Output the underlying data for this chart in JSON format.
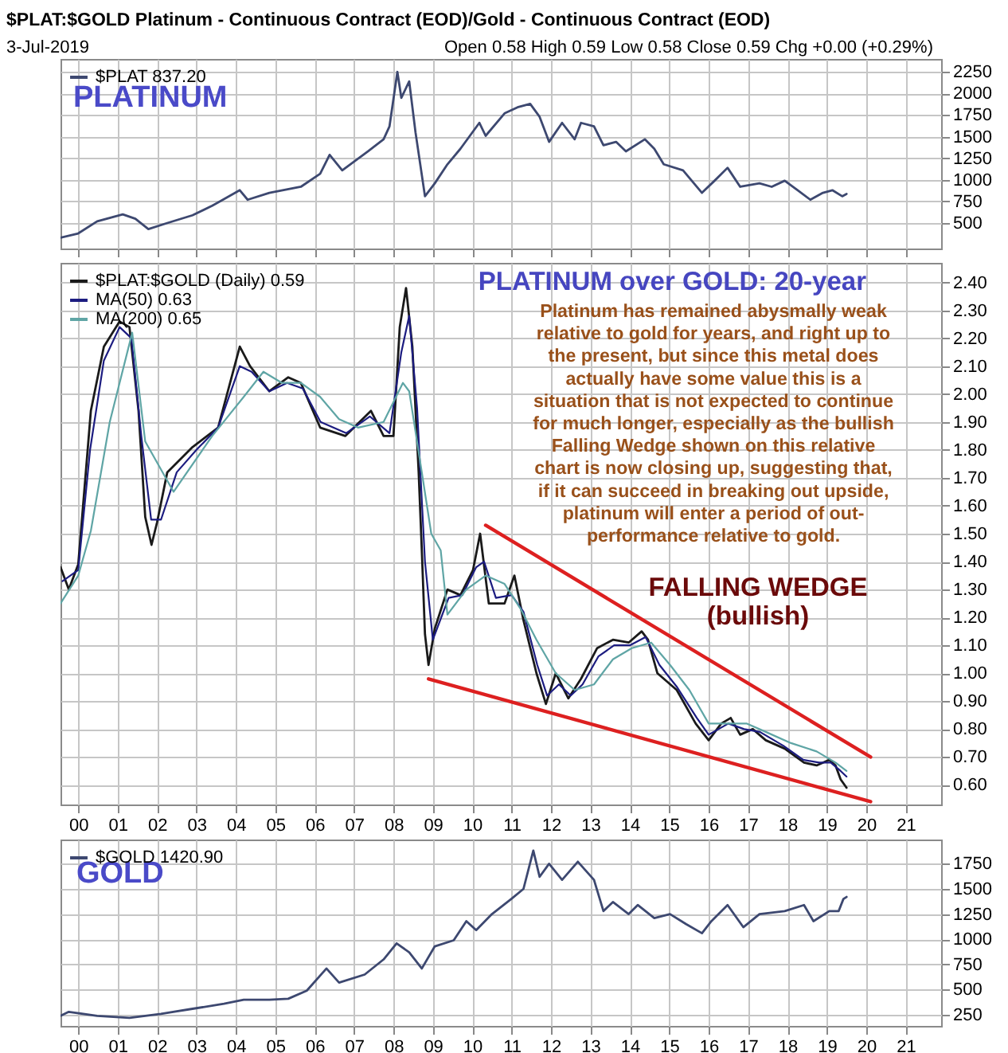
{
  "chart_data": [
    {
      "type": "line",
      "title": "$PLAT:$GOLD Platinum - Continuous Contract (EOD)/Gold - Continuous Contract (EOD)",
      "annotations": [
        "3-Jul-2019",
        "Open 0.58 High 0.59 Low 0.58 Close 0.59 Chg +0.00 (+0.29%)",
        "PLATINUM"
      ],
      "series": [
        {
          "name": "$PLAT 837.20",
          "color": "#3d4870",
          "x": [
            1999.55,
            2000.0,
            2000.48,
            2001.13,
            2001.45,
            2001.78,
            2002.26,
            2002.9,
            2003.4,
            2004.1,
            2004.3,
            2004.85,
            2005.65,
            2006.14,
            2006.38,
            2006.7,
            2007.35,
            2007.75,
            2007.9,
            2008.1,
            2008.2,
            2008.4,
            2008.56,
            2008.8,
            2009.05,
            2009.37,
            2009.7,
            2010.18,
            2010.34,
            2010.82,
            2011.15,
            2011.47,
            2011.71,
            2011.95,
            2012.28,
            2012.6,
            2012.76,
            2013.09,
            2013.33,
            2013.65,
            2013.9,
            2014.38,
            2014.62,
            2014.86,
            2015.35,
            2015.83,
            2016.15,
            2016.48,
            2016.8,
            2017.29,
            2017.6,
            2017.93,
            2018.26,
            2018.58,
            2018.9,
            2019.14,
            2019.39,
            2019.5
          ],
          "values": [
            330,
            380,
            520,
            600,
            550,
            430,
            500,
            590,
            700,
            880,
            770,
            850,
            920,
            1070,
            1290,
            1110,
            1330,
            1470,
            1620,
            2250,
            1950,
            2140,
            1550,
            810,
            960,
            1180,
            1360,
            1660,
            1510,
            1770,
            1840,
            1880,
            1730,
            1440,
            1660,
            1470,
            1660,
            1620,
            1400,
            1440,
            1330,
            1470,
            1360,
            1180,
            1110,
            850,
            990,
            1140,
            920,
            960,
            920,
            990,
            880,
            770,
            850,
            880,
            810,
            837
          ]
        }
      ],
      "xlim": [
        1999.55,
        2021.9
      ],
      "ylim": [
        205,
        2400
      ],
      "xticks": [
        {
          "value": 2000,
          "label": null
        },
        {
          "value": 2001,
          "label": null
        },
        {
          "value": 2002,
          "label": null
        },
        {
          "value": 2003,
          "label": null
        },
        {
          "value": 2004,
          "label": null
        },
        {
          "value": 2005,
          "label": null
        },
        {
          "value": 2006,
          "label": null
        },
        {
          "value": 2007,
          "label": null
        },
        {
          "value": 2008,
          "label": null
        },
        {
          "value": 2009,
          "label": null
        },
        {
          "value": 2010,
          "label": null
        },
        {
          "value": 2011,
          "label": null
        },
        {
          "value": 2012,
          "label": null
        },
        {
          "value": 2013,
          "label": null
        },
        {
          "value": 2014,
          "label": null
        },
        {
          "value": 2015,
          "label": null
        },
        {
          "value": 2016,
          "label": null
        },
        {
          "value": 2017,
          "label": null
        },
        {
          "value": 2018,
          "label": null
        },
        {
          "value": 2019,
          "label": null
        },
        {
          "value": 2020,
          "label": null
        },
        {
          "value": 2021,
          "label": null
        }
      ],
      "yticks": [
        500,
        750,
        1000,
        1250,
        1500,
        1750,
        2000,
        2250
      ],
      "grid": true,
      "legend": "top left",
      "tick_labels": "y"
    },
    {
      "type": "line",
      "title": "PLATINUM over GOLD: 20-year",
      "annotations": [
        "Platinum has remained abysmally weak\nrelative to gold for years, and right up to\nthe present, but since this metal does\nactually have some value this is a\nsituation that is not expected to continue\nfor much longer, especially as the bullish\nFalling Wedge shown on this relative\nchart is now closing up, suggesting that,\nif it can succeed in breaking out upside,\nplatinum will enter a period of out-\nperformance relative to gold.",
        "FALLING WEDGE",
        "(bullish)"
      ],
      "series": [
        {
          "name": "$PLAT:$GOLD (Daily) 0.59",
          "color": "#1a1a1a",
          "x": [
            1999.55,
            1999.76,
            2000.0,
            2000.32,
            2000.65,
            2001.05,
            2001.3,
            2001.53,
            2001.7,
            2001.86,
            2002.0,
            2002.26,
            2002.9,
            2003.55,
            2004.1,
            2004.36,
            2004.85,
            2005.33,
            2005.65,
            2006.14,
            2006.78,
            2007.43,
            2007.75,
            2008.0,
            2008.16,
            2008.32,
            2008.48,
            2008.64,
            2008.72,
            2008.8,
            2008.89,
            2009.05,
            2009.37,
            2009.7,
            2010.02,
            2010.2,
            2010.42,
            2010.82,
            2011.07,
            2011.3,
            2011.63,
            2011.87,
            2012.12,
            2012.44,
            2012.76,
            2013.17,
            2013.57,
            2013.97,
            2014.3,
            2014.46,
            2014.7,
            2015.19,
            2015.67,
            2016.0,
            2016.32,
            2016.56,
            2016.8,
            2017.12,
            2017.45,
            2017.93,
            2018.42,
            2018.74,
            2019.06,
            2019.22,
            2019.35,
            2019.5
          ],
          "values": [
            1.38,
            1.3,
            1.39,
            1.94,
            2.17,
            2.26,
            2.24,
            1.94,
            1.56,
            1.46,
            1.54,
            1.72,
            1.81,
            1.88,
            2.17,
            2.1,
            2.01,
            2.06,
            2.04,
            1.88,
            1.85,
            1.94,
            1.85,
            1.85,
            2.24,
            2.38,
            2.17,
            1.72,
            1.44,
            1.14,
            1.03,
            1.16,
            1.3,
            1.28,
            1.37,
            1.5,
            1.25,
            1.25,
            1.35,
            1.19,
            1.0,
            0.89,
            1.0,
            0.91,
            0.98,
            1.09,
            1.12,
            1.11,
            1.15,
            1.12,
            1.0,
            0.94,
            0.82,
            0.76,
            0.82,
            0.84,
            0.78,
            0.8,
            0.76,
            0.73,
            0.68,
            0.67,
            0.69,
            0.67,
            0.62,
            0.59
          ]
        },
        {
          "name": "MA(50) 0.63",
          "color": "#1c1c80",
          "x": [
            1999.6,
            2000.0,
            2000.3,
            2000.65,
            2001.05,
            2001.35,
            2001.6,
            2001.85,
            2002.1,
            2002.5,
            2003.0,
            2003.55,
            2004.1,
            2004.4,
            2004.85,
            2005.3,
            2005.7,
            2006.15,
            2006.8,
            2007.4,
            2007.9,
            2008.2,
            2008.4,
            2008.6,
            2008.8,
            2009.0,
            2009.4,
            2009.75,
            2010.1,
            2010.3,
            2010.6,
            2011.0,
            2011.3,
            2011.65,
            2011.9,
            2012.2,
            2012.5,
            2012.8,
            2013.2,
            2013.6,
            2014.0,
            2014.4,
            2014.75,
            2015.2,
            2015.7,
            2016.0,
            2016.5,
            2016.9,
            2017.3,
            2017.9,
            2018.4,
            2018.8,
            2019.1,
            2019.35,
            2019.5
          ],
          "values": [
            1.33,
            1.37,
            1.8,
            2.12,
            2.24,
            2.2,
            1.85,
            1.55,
            1.55,
            1.72,
            1.8,
            1.88,
            2.1,
            2.08,
            2.01,
            2.04,
            2.02,
            1.9,
            1.86,
            1.92,
            1.86,
            2.15,
            2.28,
            1.95,
            1.4,
            1.12,
            1.27,
            1.28,
            1.38,
            1.4,
            1.27,
            1.28,
            1.22,
            1.03,
            0.92,
            0.96,
            0.92,
            0.96,
            1.06,
            1.1,
            1.1,
            1.13,
            1.03,
            0.95,
            0.84,
            0.78,
            0.82,
            0.8,
            0.79,
            0.74,
            0.69,
            0.68,
            0.68,
            0.65,
            0.63
          ]
        },
        {
          "name": "MA(200) 0.65",
          "color": "#5fa5a5",
          "x": [
            1999.55,
            2000.0,
            2000.32,
            2000.8,
            2001.37,
            2001.7,
            2002.42,
            2003.4,
            2004.2,
            2004.7,
            2005.17,
            2005.65,
            2006.14,
            2006.62,
            2007.1,
            2007.75,
            2008.24,
            2008.4,
            2008.72,
            2008.96,
            2009.2,
            2009.37,
            2009.85,
            2010.34,
            2010.82,
            2011.23,
            2011.63,
            2012.12,
            2012.6,
            2013.09,
            2013.57,
            2014.05,
            2014.54,
            2015.02,
            2015.51,
            2016.0,
            2016.48,
            2016.96,
            2017.45,
            2018.09,
            2018.74,
            2019.22,
            2019.5
          ],
          "values": [
            1.25,
            1.35,
            1.51,
            1.9,
            2.22,
            1.83,
            1.65,
            1.85,
            1.99,
            2.08,
            2.04,
            2.04,
            1.99,
            1.91,
            1.88,
            1.9,
            2.04,
            2.01,
            1.72,
            1.5,
            1.44,
            1.21,
            1.3,
            1.35,
            1.32,
            1.23,
            1.12,
            1.0,
            0.94,
            0.96,
            1.05,
            1.09,
            1.11,
            1.03,
            0.94,
            0.82,
            0.82,
            0.82,
            0.79,
            0.75,
            0.72,
            0.68,
            0.65
          ]
        },
        {
          "color": "#dd2020",
          "x": [
            2010.34,
            2020.11
          ],
          "values": [
            1.53,
            0.7
          ]
        },
        {
          "color": "#dd2020",
          "x": [
            2008.89,
            2020.11
          ],
          "values": [
            0.98,
            0.54
          ]
        }
      ],
      "xlim": [
        1999.55,
        2021.9
      ],
      "ylim": [
        0.53,
        2.47
      ],
      "xticks": [
        {
          "value": 2000,
          "label": "00"
        },
        {
          "value": 2001,
          "label": "01"
        },
        {
          "value": 2002,
          "label": "02"
        },
        {
          "value": 2003,
          "label": "03"
        },
        {
          "value": 2004,
          "label": "04"
        },
        {
          "value": 2005,
          "label": "05"
        },
        {
          "value": 2006,
          "label": "06"
        },
        {
          "value": 2007,
          "label": "07"
        },
        {
          "value": 2008,
          "label": "08"
        },
        {
          "value": 2009,
          "label": "09"
        },
        {
          "value": 2010,
          "label": "10"
        },
        {
          "value": 2011,
          "label": "11"
        },
        {
          "value": 2012,
          "label": "12"
        },
        {
          "value": 2013,
          "label": "13"
        },
        {
          "value": 2014,
          "label": "14"
        },
        {
          "value": 2015,
          "label": "15"
        },
        {
          "value": 2016,
          "label": "16"
        },
        {
          "value": 2017,
          "label": "17"
        },
        {
          "value": 2018,
          "label": "18"
        },
        {
          "value": 2019,
          "label": "19"
        },
        {
          "value": 2020,
          "label": "20"
        },
        {
          "value": 2021,
          "label": "21"
        }
      ],
      "yticks": [
        {
          "value": 0.6,
          "label": "0.60"
        },
        {
          "value": 0.7,
          "label": "0.70"
        },
        {
          "value": 0.8,
          "label": "0.80"
        },
        {
          "value": 0.9,
          "label": "0.90"
        },
        {
          "value": 1.0,
          "label": "1.00"
        },
        {
          "value": 1.1,
          "label": "1.10"
        },
        {
          "value": 1.2,
          "label": "1.20"
        },
        {
          "value": 1.3,
          "label": "1.30"
        },
        {
          "value": 1.4,
          "label": "1.40"
        },
        {
          "value": 1.5,
          "label": "1.50"
        },
        {
          "value": 1.6,
          "label": "1.60"
        },
        {
          "value": 1.7,
          "label": "1.70"
        },
        {
          "value": 1.8,
          "label": "1.80"
        },
        {
          "value": 1.9,
          "label": "1.90"
        },
        {
          "value": 2.0,
          "label": "2.00"
        },
        {
          "value": 2.1,
          "label": "2.10"
        },
        {
          "value": 2.2,
          "label": "2.20"
        },
        {
          "value": 2.3,
          "label": "2.30"
        },
        {
          "value": 2.4,
          "label": "2.40"
        }
      ],
      "grid": true,
      "legend": "top left"
    },
    {
      "type": "line",
      "annotations": [
        "GOLD"
      ],
      "series": [
        {
          "name": "$GOLD 1420.90",
          "color": "#3d4870",
          "x": [
            1999.55,
            1999.76,
            2000.48,
            2001.3,
            2002.1,
            2002.9,
            2003.7,
            2004.2,
            2004.85,
            2005.33,
            2005.8,
            2006.3,
            2006.62,
            2007.27,
            2007.75,
            2008.08,
            2008.4,
            2008.72,
            2009.05,
            2009.53,
            2009.85,
            2010.1,
            2010.5,
            2010.99,
            2011.3,
            2011.55,
            2011.71,
            2011.95,
            2012.28,
            2012.68,
            2013.09,
            2013.33,
            2013.57,
            2013.97,
            2014.2,
            2014.62,
            2015.02,
            2015.43,
            2015.83,
            2016.07,
            2016.48,
            2016.88,
            2017.29,
            2017.93,
            2018.42,
            2018.66,
            2019.06,
            2019.3,
            2019.42,
            2019.5
          ],
          "values": [
            240,
            280,
            240,
            220,
            260,
            310,
            360,
            400,
            400,
            410,
            490,
            710,
            570,
            650,
            800,
            960,
            870,
            710,
            930,
            990,
            1180,
            1090,
            1250,
            1400,
            1500,
            1880,
            1620,
            1750,
            1590,
            1770,
            1590,
            1280,
            1370,
            1250,
            1340,
            1210,
            1250,
            1150,
            1060,
            1180,
            1340,
            1120,
            1250,
            1280,
            1340,
            1180,
            1280,
            1280,
            1400,
            1420
          ]
        }
      ],
      "xlim": [
        1999.55,
        2021.9
      ],
      "ylim": [
        140,
        1990
      ],
      "xticks": [
        {
          "value": 2000,
          "label": "00"
        },
        {
          "value": 2001,
          "label": "01"
        },
        {
          "value": 2002,
          "label": "02"
        },
        {
          "value": 2003,
          "label": "03"
        },
        {
          "value": 2004,
          "label": "04"
        },
        {
          "value": 2005,
          "label": "05"
        },
        {
          "value": 2006,
          "label": "06"
        },
        {
          "value": 2007,
          "label": "07"
        },
        {
          "value": 2008,
          "label": "08"
        },
        {
          "value": 2009,
          "label": "09"
        },
        {
          "value": 2010,
          "label": "10"
        },
        {
          "value": 2011,
          "label": "11"
        },
        {
          "value": 2012,
          "label": "12"
        },
        {
          "value": 2013,
          "label": "13"
        },
        {
          "value": 2014,
          "label": "14"
        },
        {
          "value": 2015,
          "label": "15"
        },
        {
          "value": 2016,
          "label": "16"
        },
        {
          "value": 2017,
          "label": "17"
        },
        {
          "value": 2018,
          "label": "18"
        },
        {
          "value": 2019,
          "label": "19"
        },
        {
          "value": 2020,
          "label": "20"
        },
        {
          "value": 2021,
          "label": "21"
        }
      ],
      "yticks": [
        250,
        500,
        750,
        1000,
        1250,
        1500,
        1750
      ],
      "grid": true,
      "legend": "top left"
    }
  ]
}
